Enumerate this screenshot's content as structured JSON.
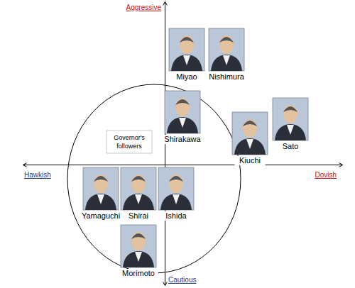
{
  "chart_data": {
    "type": "scatter",
    "x_axis_labels": [
      "Hawkish",
      "Dovish"
    ],
    "y_axis_labels": [
      "Cautious",
      "Aggressive"
    ],
    "labels": [
      "Miyao",
      "Nishimura",
      "Shirakawa",
      "Kiuchi",
      "Sato",
      "Yamaguchi",
      "Shirai",
      "Ishida",
      "Morimoto"
    ],
    "x": [
      1.55,
      4.35,
      1.25,
      6,
      8.85,
      -4.5,
      -1.85,
      0.8,
      -1.85
    ],
    "values": [
      8.1,
      8.1,
      3.7,
      2.2,
      3.2,
      -1.7,
      -1.7,
      -1.7,
      -5.75
    ],
    "xlim": [
      -10,
      12.5
    ],
    "ylim": [
      -8.5,
      11.5
    ],
    "xticks": [],
    "yticks": [],
    "tick_labels": false,
    "grid": false,
    "annotations": [
      {
        "text": "Governor's followers"
      }
    ]
  }
}
